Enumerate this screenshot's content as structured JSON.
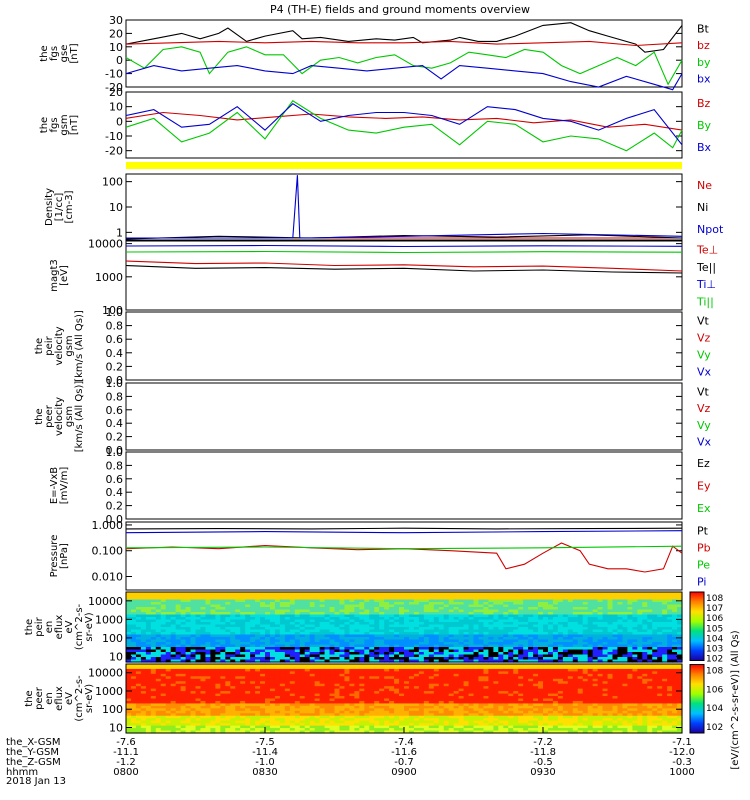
{
  "title": "P4 (TH-E) fields and ground moments overview",
  "date_label": "2018 Jan 13",
  "colors": {
    "black": "#000000",
    "red": "#d00000",
    "green": "#00c800",
    "blue": "#0000d0",
    "yellow": "#ffff00"
  },
  "chart_data": [
    {
      "id": "fgs_gse",
      "type": "line",
      "ylabel": [
        "the",
        "fgs",
        "gse",
        "[nT]"
      ],
      "ylim": [
        -20,
        30
      ],
      "ticks": [
        "30",
        "20",
        "10",
        "0",
        "-10",
        "-20"
      ],
      "tick_values": [
        30,
        20,
        10,
        0,
        -10,
        -20
      ],
      "series": [
        {
          "name": "Bt",
          "color": "#000000",
          "x": [
            0,
            6,
            12,
            16,
            20,
            22,
            26,
            30,
            36,
            38,
            42,
            48,
            54,
            58,
            62,
            64,
            70,
            72,
            76,
            80,
            84,
            90,
            96,
            100,
            104,
            110,
            112,
            116,
            120
          ],
          "values": [
            12,
            16,
            20,
            16,
            20,
            24,
            14,
            18,
            22,
            16,
            17,
            14,
            16,
            15,
            17,
            13,
            15,
            17,
            14,
            14,
            18,
            26,
            28,
            22,
            18,
            12,
            6,
            8,
            26
          ]
        },
        {
          "name": "bz",
          "color": "#d00000",
          "x": [
            0,
            10,
            20,
            30,
            40,
            50,
            60,
            70,
            80,
            90,
            100,
            110,
            120
          ],
          "values": [
            12,
            13,
            14,
            13,
            14,
            13,
            13,
            14,
            12,
            13,
            14,
            11,
            13
          ]
        },
        {
          "name": "by",
          "color": "#00c800",
          "x": [
            0,
            4,
            8,
            12,
            16,
            18,
            22,
            26,
            30,
            34,
            38,
            42,
            46,
            50,
            54,
            58,
            62,
            66,
            70,
            74,
            78,
            82,
            86,
            90,
            94,
            98,
            102,
            106,
            110,
            114,
            117,
            120
          ],
          "values": [
            2,
            -6,
            8,
            10,
            6,
            -10,
            6,
            10,
            4,
            4,
            -10,
            0,
            2,
            -2,
            2,
            4,
            -4,
            -6,
            -2,
            6,
            4,
            2,
            8,
            6,
            -4,
            -10,
            -4,
            2,
            -4,
            6,
            -18,
            0
          ]
        },
        {
          "name": "bx",
          "color": "#0000d0",
          "x": [
            0,
            6,
            12,
            18,
            24,
            30,
            36,
            40,
            46,
            52,
            58,
            64,
            68,
            72,
            78,
            84,
            90,
            96,
            102,
            108,
            114,
            118,
            120
          ],
          "values": [
            -10,
            -4,
            -8,
            -6,
            -4,
            -8,
            -10,
            -4,
            -6,
            -8,
            -6,
            -4,
            -14,
            -4,
            -6,
            -8,
            -10,
            -16,
            -20,
            -12,
            -18,
            -22,
            -10
          ]
        }
      ]
    },
    {
      "id": "fgs_gsm",
      "type": "line",
      "ylabel": [
        "the",
        "fgs",
        "gsm",
        "[nT]"
      ],
      "ylim": [
        -25,
        20
      ],
      "ticks": [
        "20",
        "10",
        "0",
        "-10",
        "-20"
      ],
      "tick_values": [
        20,
        10,
        0,
        -10,
        -20
      ],
      "series": [
        {
          "name": "Bz",
          "color": "#d00000",
          "x": [
            0,
            8,
            16,
            24,
            32,
            40,
            48,
            56,
            64,
            72,
            80,
            88,
            96,
            104,
            112,
            120
          ],
          "values": [
            2,
            6,
            4,
            1,
            3,
            5,
            3,
            2,
            3,
            1,
            2,
            -1,
            1,
            -4,
            -2,
            -6
          ]
        },
        {
          "name": "By",
          "color": "#00c800",
          "x": [
            0,
            6,
            12,
            18,
            24,
            30,
            36,
            42,
            48,
            54,
            60,
            66,
            72,
            78,
            84,
            90,
            96,
            102,
            108,
            114,
            118,
            120
          ],
          "values": [
            -4,
            2,
            -14,
            -8,
            6,
            -12,
            14,
            2,
            -6,
            -8,
            -4,
            -2,
            -16,
            0,
            -2,
            -14,
            -10,
            -12,
            -20,
            -8,
            -18,
            -6
          ]
        },
        {
          "name": "Bx",
          "color": "#0000d0",
          "x": [
            0,
            6,
            12,
            18,
            24,
            30,
            36,
            42,
            48,
            54,
            60,
            66,
            72,
            78,
            84,
            90,
            96,
            102,
            108,
            114,
            120
          ],
          "values": [
            4,
            8,
            -4,
            -2,
            10,
            -6,
            12,
            0,
            4,
            6,
            6,
            4,
            -2,
            10,
            8,
            2,
            0,
            -6,
            2,
            8,
            -16
          ]
        }
      ]
    },
    {
      "id": "density",
      "type": "line",
      "yscale": "log",
      "ylabel": [
        "Density",
        "[1/cc]",
        "[cm-3]"
      ],
      "ylim": [
        0.5,
        200
      ],
      "ticks": [
        "100",
        "10",
        "1"
      ],
      "tick_values": [
        100,
        10,
        1
      ],
      "series": [
        {
          "name": "Ne",
          "color": "#d00000",
          "x": [
            0,
            120
          ],
          "values": [
            0.6,
            0.6
          ]
        },
        {
          "name": "Ni",
          "color": "#000000",
          "x": [
            0,
            20,
            40,
            60,
            80,
            100,
            120
          ],
          "values": [
            0.55,
            0.7,
            0.6,
            0.75,
            0.65,
            0.8,
            0.6
          ]
        },
        {
          "name": "Npot",
          "color": "#0000d0",
          "x": [
            0,
            36,
            37,
            37.5,
            38,
            60,
            90,
            120
          ],
          "values": [
            0.6,
            0.6,
            180,
            0.6,
            0.6,
            0.7,
            0.9,
            0.7
          ]
        }
      ]
    },
    {
      "id": "temperature",
      "type": "line",
      "yscale": "log",
      "ylabel": [
        "magt3",
        "[eV]"
      ],
      "ylim": [
        100,
        12000
      ],
      "ticks": [
        "10000",
        "1000",
        "100"
      ],
      "tick_values": [
        10000,
        1000,
        100
      ],
      "series": [
        {
          "name": "Te⊥",
          "color": "#d00000",
          "x": [
            0,
            15,
            30,
            45,
            60,
            75,
            90,
            105,
            120
          ],
          "values": [
            3000,
            2500,
            2600,
            2200,
            2300,
            2000,
            2100,
            1800,
            1500
          ]
        },
        {
          "name": "Te||",
          "color": "#000000",
          "x": [
            0,
            15,
            30,
            45,
            60,
            75,
            90,
            105,
            120
          ],
          "values": [
            2200,
            1800,
            1900,
            1700,
            1800,
            1500,
            1600,
            1400,
            1300
          ]
        },
        {
          "name": "Ti⊥",
          "color": "#0000d0",
          "x": [
            0,
            30,
            60,
            90,
            120
          ],
          "values": [
            8500,
            8800,
            8200,
            8600,
            8300
          ]
        },
        {
          "name": "Ti||",
          "color": "#00c800",
          "x": [
            0,
            30,
            60,
            90,
            120
          ],
          "values": [
            5600,
            5800,
            5400,
            5700,
            5500
          ]
        }
      ]
    },
    {
      "id": "peir_velocity",
      "type": "line",
      "ylabel": [
        "the",
        "peir",
        "velocity",
        "gsm",
        "[km/s (All Qs)]"
      ],
      "ylim": [
        0,
        1
      ],
      "ticks": [
        "1.0",
        "0.8",
        "0.6",
        "0.4",
        "0.2",
        "0.0"
      ],
      "tick_values": [
        1,
        0.8,
        0.6,
        0.4,
        0.2,
        0
      ],
      "legend": [
        "Vt",
        "Vz",
        "Vy",
        "Vx"
      ],
      "series": []
    },
    {
      "id": "peer_velocity",
      "type": "line",
      "ylabel": [
        "the",
        "peer",
        "velocity",
        "gsm",
        "[km/s (All Qs)]"
      ],
      "ylim": [
        0,
        1
      ],
      "ticks": [
        "1.0",
        "0.8",
        "0.6",
        "0.4",
        "0.2",
        "0.0"
      ],
      "tick_values": [
        1,
        0.8,
        0.6,
        0.4,
        0.2,
        0
      ],
      "legend": [
        "Vt",
        "Vz",
        "Vy",
        "Vx"
      ],
      "series": []
    },
    {
      "id": "efield",
      "type": "line",
      "ylabel": [
        "E=-VxB",
        "[mV/m]"
      ],
      "ylim": [
        0,
        1
      ],
      "ticks": [
        "1.0",
        "0.8",
        "0.6",
        "0.4",
        "0.2",
        "0.0"
      ],
      "tick_values": [
        1,
        0.8,
        0.6,
        0.4,
        0.2,
        0
      ],
      "legend": [
        "Ez",
        "Ey",
        "Ex"
      ],
      "series": []
    },
    {
      "id": "pressure",
      "type": "line",
      "yscale": "log",
      "ylabel": [
        "Pressure",
        "[nPa]"
      ],
      "ylim": [
        0.003,
        1.3
      ],
      "ticks": [
        "1.000",
        "0.100",
        "0.010"
      ],
      "tick_values": [
        1,
        0.1,
        0.01
      ],
      "series": [
        {
          "name": "Pt",
          "color": "#000000",
          "x": [
            0,
            20,
            40,
            60,
            80,
            100,
            120
          ],
          "values": [
            0.7,
            0.72,
            0.7,
            0.75,
            0.7,
            0.72,
            0.75
          ]
        },
        {
          "name": "Pb",
          "color": "#d00000",
          "x": [
            0,
            10,
            20,
            30,
            40,
            50,
            60,
            70,
            80,
            82,
            86,
            90,
            94,
            98,
            100,
            104,
            108,
            112,
            116,
            118,
            120
          ],
          "values": [
            0.12,
            0.14,
            0.12,
            0.16,
            0.13,
            0.11,
            0.12,
            0.1,
            0.08,
            0.02,
            0.03,
            0.08,
            0.2,
            0.1,
            0.03,
            0.02,
            0.02,
            0.015,
            0.02,
            0.15,
            0.08
          ]
        },
        {
          "name": "Pe",
          "color": "#00c800",
          "x": [
            0,
            30,
            60,
            90,
            120
          ],
          "values": [
            0.13,
            0.14,
            0.12,
            0.13,
            0.15
          ]
        },
        {
          "name": "Pi",
          "color": "#0000d0",
          "x": [
            0,
            30,
            60,
            90,
            120
          ],
          "values": [
            0.5,
            0.55,
            0.5,
            0.55,
            0.6
          ]
        }
      ]
    },
    {
      "id": "peir_spec",
      "type": "heatmap",
      "yscale": "log",
      "ylabel": [
        "the",
        "peir",
        "en",
        "eflux",
        "eV",
        "(cm^2-s-",
        "sr-eV)"
      ],
      "ylim": [
        5,
        30000
      ],
      "ticks": [
        "10000",
        "1000",
        "100",
        "10"
      ],
      "tick_values": [
        10000,
        1000,
        100,
        10
      ]
    },
    {
      "id": "peer_spec",
      "type": "heatmap",
      "yscale": "log",
      "ylabel": [
        "the",
        "peer",
        "en",
        "eflux",
        "eV",
        "(cm^2-s-",
        "sr-eV)"
      ],
      "ylim": [
        5,
        30000
      ],
      "ticks": [
        "10000",
        "1000",
        "100",
        "10"
      ],
      "tick_values": [
        10000,
        1000,
        100,
        10
      ]
    }
  ],
  "colorbar": {
    "ticks": [
      "10^8",
      "10^6",
      "10^4",
      "10^2"
    ],
    "top_ticks": [
      "10^8",
      "10^7",
      "10^6",
      "10^5",
      "10^4",
      "10^3",
      "10^2"
    ],
    "label": "[eV/(cm^2-s-sr-eV)] (All Qs)"
  },
  "x_axis": {
    "rows": [
      {
        "label": "the_X-GSM",
        "values": [
          "-7.6",
          "-7.5",
          "-7.4",
          "-7.2",
          "-7.1"
        ]
      },
      {
        "label": "the_Y-GSM",
        "values": [
          "-11.1",
          "-11.4",
          "-11.6",
          "-11.8",
          "-12.0"
        ]
      },
      {
        "label": "the_Z-GSM",
        "values": [
          "-1.2",
          "-1.0",
          "-0.7",
          "-0.5",
          "-0.3"
        ]
      },
      {
        "label": "hhmm",
        "values": [
          "0800",
          "0830",
          "0900",
          "0930",
          "1000"
        ]
      }
    ],
    "minutes": [
      0,
      30,
      60,
      90,
      120
    ]
  }
}
